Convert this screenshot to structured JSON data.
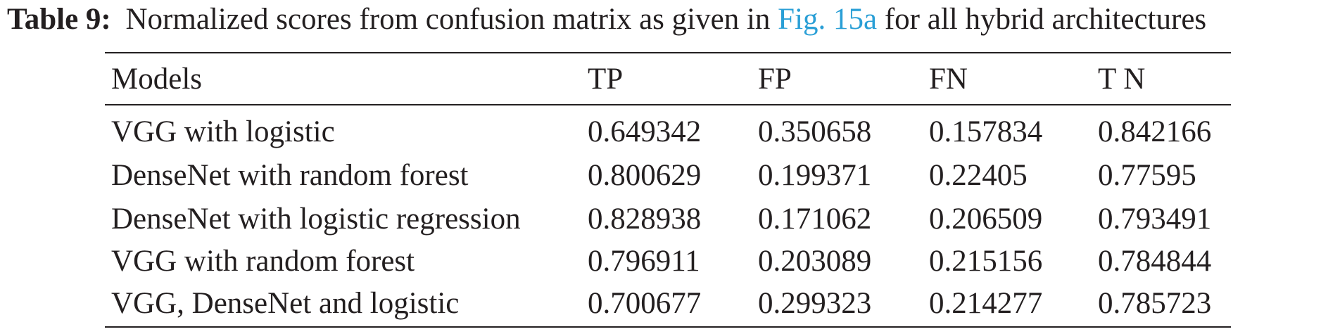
{
  "caption": {
    "label": "Table 9:",
    "text_before": "Normalized scores from confusion matrix as given in",
    "link": "Fig. 15a",
    "text_after": "for all hybrid architectures"
  },
  "table": {
    "header": [
      "Models",
      "TP",
      "FP",
      "FN",
      "T N"
    ],
    "rows": [
      [
        "VGG with logistic",
        "0.649342",
        "0.350658",
        "0.157834",
        "0.842166"
      ],
      [
        "DenseNet with random forest",
        "0.800629",
        "0.199371",
        "0.22405",
        "0.77595"
      ],
      [
        "DenseNet with logistic regression",
        "0.828938",
        "0.171062",
        "0.206509",
        "0.793491"
      ],
      [
        "VGG with random forest",
        "0.796911",
        "0.203089",
        "0.215156",
        "0.784844"
      ],
      [
        "VGG, DenseNet and logistic",
        "0.700677",
        "0.299323",
        "0.214277",
        "0.785723"
      ]
    ]
  }
}
